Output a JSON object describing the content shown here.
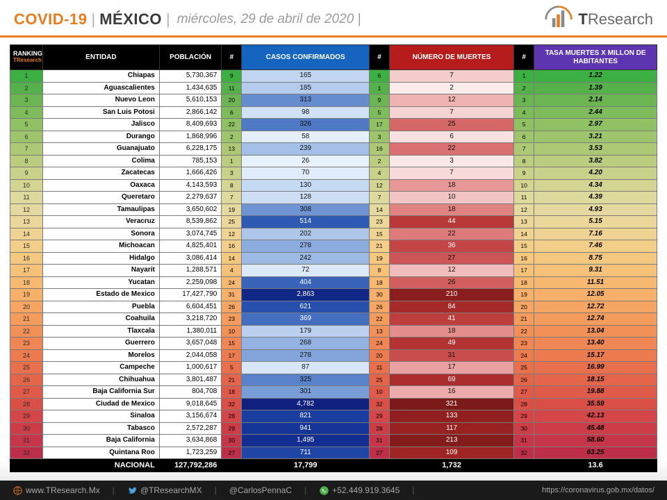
{
  "header": {
    "covid": "COVID-19",
    "country": "MÉXICO",
    "date": "miércoles, 29 de abril de 2020",
    "brand1": "T",
    "brand2": "Research"
  },
  "columns": {
    "rank": "RANKING",
    "rank_sub": "TResearch",
    "entity": "ENTIDAD",
    "population": "POBLACIÓN",
    "hash": "#",
    "cases": "CASOS CONFIRMADOS",
    "deaths": "NÚMERO DE MUERTES",
    "rate": "TASA MUERTES X MILLON DE HABITANTES"
  },
  "palette": {
    "rate_scale": [
      "#3cb043",
      "#55b24a",
      "#6bb652",
      "#7ebb5a",
      "#8fc063",
      "#9ec46c",
      "#aec976",
      "#bdcd80",
      "#cad18a",
      "#d5d593",
      "#ded99c",
      "#e6d99f",
      "#ecd79b",
      "#f0d392",
      "#f3ce89",
      "#f5c880",
      "#f6c178",
      "#f7b970",
      "#f7b069",
      "#f6a662",
      "#f49c5c",
      "#f29157",
      "#ef8653",
      "#ec7b4f",
      "#e8704c",
      "#e4654a",
      "#df5a48",
      "#da5047",
      "#d44647",
      "#cd3d47",
      "#c63548",
      "#be2e49"
    ],
    "cases_scale": [
      "#e8f2fc",
      "#e4effb",
      "#e0ecfa",
      "#dcE9f9",
      "#d7e6f8",
      "#d2e2f6",
      "#cddef5",
      "#c7daf3",
      "#c1d5f1",
      "#bbd0ef",
      "#b4cbed",
      "#adc6ea",
      "#a5c0e8",
      "#9dbae5",
      "#95b3e2",
      "#8cacdf",
      "#83a5db",
      "#799dd7",
      "#6f94d3",
      "#658ccf",
      "#5a82ca",
      "#4f79c5",
      "#446fc0",
      "#3964ba",
      "#2f5ab4",
      "#264fae",
      "#1f46a7",
      "#1a3da0",
      "#163598",
      "#132e90",
      "#112788",
      "#102180"
    ],
    "deaths_scale": [
      "#fbecec",
      "#fae7e7",
      "#f9e1e1",
      "#f8dada",
      "#f6d3d3",
      "#f5cccc",
      "#f3c4c4",
      "#f1bbbb",
      "#efb3b3",
      "#edaaaa",
      "#eaa0a0",
      "#e79797",
      "#e48d8d",
      "#e18383",
      "#de7a7a",
      "#da7070",
      "#d66767",
      "#d25e5e",
      "#cd5555",
      "#c94d4d",
      "#c44545",
      "#be3e3e",
      "#b93838",
      "#b33232",
      "#ac2d2d",
      "#a62929",
      "#9f2525",
      "#982222",
      "#911f1f",
      "#8a1d1d",
      "#831b1b",
      "#7c1a1a"
    ]
  },
  "rows": [
    {
      "rank": 1,
      "entity": "Chiapas",
      "pop": "5,730,367",
      "cases_rank": 9,
      "cases": "165",
      "deaths_rank": 6,
      "deaths": "7",
      "rate_rank": 1,
      "rate": "1.22"
    },
    {
      "rank": 2,
      "entity": "Aguascalientes",
      "pop": "1,434,635",
      "cases_rank": 11,
      "cases": "185",
      "deaths_rank": 1,
      "deaths": "2",
      "rate_rank": 2,
      "rate": "1.39"
    },
    {
      "rank": 3,
      "entity": "Nuevo Leon",
      "pop": "5,610,153",
      "cases_rank": 20,
      "cases": "313",
      "deaths_rank": 9,
      "deaths": "12",
      "rate_rank": 3,
      "rate": "2.14"
    },
    {
      "rank": 4,
      "entity": "San Luis Potosi",
      "pop": "2,866,142",
      "cases_rank": 6,
      "cases": "98",
      "deaths_rank": 5,
      "deaths": "7",
      "rate_rank": 4,
      "rate": "2.44"
    },
    {
      "rank": 5,
      "entity": "Jalisco",
      "pop": "8,409,693",
      "cases_rank": 22,
      "cases": "326",
      "deaths_rank": 17,
      "deaths": "25",
      "rate_rank": 5,
      "rate": "2.97"
    },
    {
      "rank": 6,
      "entity": "Durango",
      "pop": "1,868,996",
      "cases_rank": 2,
      "cases": "58",
      "deaths_rank": 3,
      "deaths": "6",
      "rate_rank": 6,
      "rate": "3.21"
    },
    {
      "rank": 7,
      "entity": "Guanajuato",
      "pop": "6,228,175",
      "cases_rank": 13,
      "cases": "239",
      "deaths_rank": 16,
      "deaths": "22",
      "rate_rank": 7,
      "rate": "3.53"
    },
    {
      "rank": 8,
      "entity": "Colima",
      "pop": "785,153",
      "cases_rank": 1,
      "cases": "26",
      "deaths_rank": 2,
      "deaths": "3",
      "rate_rank": 8,
      "rate": "3.82"
    },
    {
      "rank": 9,
      "entity": "Zacatecas",
      "pop": "1,666,426",
      "cases_rank": 3,
      "cases": "70",
      "deaths_rank": 4,
      "deaths": "7",
      "rate_rank": 9,
      "rate": "4.20"
    },
    {
      "rank": 10,
      "entity": "Oaxaca",
      "pop": "4,143,593",
      "cases_rank": 8,
      "cases": "130",
      "deaths_rank": 12,
      "deaths": "18",
      "rate_rank": 10,
      "rate": "4.34"
    },
    {
      "rank": 11,
      "entity": "Queretaro",
      "pop": "2,279,637",
      "cases_rank": 7,
      "cases": "128",
      "deaths_rank": 7,
      "deaths": "10",
      "rate_rank": 11,
      "rate": "4.39"
    },
    {
      "rank": 12,
      "entity": "Tamaulipas",
      "pop": "3,650,602",
      "cases_rank": 19,
      "cases": "308",
      "deaths_rank": 14,
      "deaths": "18",
      "rate_rank": 12,
      "rate": "4.93"
    },
    {
      "rank": 13,
      "entity": "Veracruz",
      "pop": "8,539,862",
      "cases_rank": 25,
      "cases": "514",
      "deaths_rank": 23,
      "deaths": "44",
      "rate_rank": 13,
      "rate": "5.15"
    },
    {
      "rank": 14,
      "entity": "Sonora",
      "pop": "3,074,745",
      "cases_rank": 12,
      "cases": "202",
      "deaths_rank": 15,
      "deaths": "22",
      "rate_rank": 14,
      "rate": "7.16"
    },
    {
      "rank": 15,
      "entity": "Michoacan",
      "pop": "4,825,401",
      "cases_rank": 16,
      "cases": "278",
      "deaths_rank": 21,
      "deaths": "36",
      "rate_rank": 15,
      "rate": "7.46"
    },
    {
      "rank": 16,
      "entity": "Hidalgo",
      "pop": "3,086,414",
      "cases_rank": 14,
      "cases": "242",
      "deaths_rank": 19,
      "deaths": "27",
      "rate_rank": 16,
      "rate": "8.75"
    },
    {
      "rank": 17,
      "entity": "Nayarit",
      "pop": "1,288,571",
      "cases_rank": 4,
      "cases": "72",
      "deaths_rank": 8,
      "deaths": "12",
      "rate_rank": 17,
      "rate": "9.31"
    },
    {
      "rank": 18,
      "entity": "Yucatan",
      "pop": "2,259,098",
      "cases_rank": 24,
      "cases": "404",
      "deaths_rank": 18,
      "deaths": "26",
      "rate_rank": 18,
      "rate": "11.51"
    },
    {
      "rank": 19,
      "entity": "Estado de Mexico",
      "pop": "17,427,790",
      "cases_rank": 31,
      "cases": "2,863",
      "deaths_rank": 30,
      "deaths": "210",
      "rate_rank": 19,
      "rate": "12.05"
    },
    {
      "rank": 20,
      "entity": "Puebla",
      "pop": "6,604,451",
      "cases_rank": 26,
      "cases": "621",
      "deaths_rank": 26,
      "deaths": "84",
      "rate_rank": 20,
      "rate": "12.72"
    },
    {
      "rank": 21,
      "entity": "Coahuila",
      "pop": "3,218,720",
      "cases_rank": 23,
      "cases": "369",
      "deaths_rank": 22,
      "deaths": "41",
      "rate_rank": 21,
      "rate": "12.74"
    },
    {
      "rank": 22,
      "entity": "Tlaxcala",
      "pop": "1,380,011",
      "cases_rank": 10,
      "cases": "179",
      "deaths_rank": 13,
      "deaths": "18",
      "rate_rank": 22,
      "rate": "13.04"
    },
    {
      "rank": 23,
      "entity": "Guerrero",
      "pop": "3,657,048",
      "cases_rank": 15,
      "cases": "268",
      "deaths_rank": 24,
      "deaths": "49",
      "rate_rank": 23,
      "rate": "13.40"
    },
    {
      "rank": 24,
      "entity": "Morelos",
      "pop": "2,044,058",
      "cases_rank": 17,
      "cases": "278",
      "deaths_rank": 20,
      "deaths": "31",
      "rate_rank": 24,
      "rate": "15.17"
    },
    {
      "rank": 25,
      "entity": "Campeche",
      "pop": "1,000,617",
      "cases_rank": 5,
      "cases": "87",
      "deaths_rank": 11,
      "deaths": "17",
      "rate_rank": 25,
      "rate": "16.99"
    },
    {
      "rank": 26,
      "entity": "Chihuahua",
      "pop": "3,801,487",
      "cases_rank": 21,
      "cases": "325",
      "deaths_rank": 25,
      "deaths": "69",
      "rate_rank": 26,
      "rate": "18.15"
    },
    {
      "rank": 27,
      "entity": "Baja California Sur",
      "pop": "804,708",
      "cases_rank": 18,
      "cases": "301",
      "deaths_rank": 10,
      "deaths": "16",
      "rate_rank": 27,
      "rate": "19.88"
    },
    {
      "rank": 28,
      "entity": "Ciudad de Mexico",
      "pop": "9,018,645",
      "cases_rank": 32,
      "cases": "4,782",
      "deaths_rank": 32,
      "deaths": "321",
      "rate_rank": 28,
      "rate": "35.59"
    },
    {
      "rank": 29,
      "entity": "Sinaloa",
      "pop": "3,156,674",
      "cases_rank": 28,
      "cases": "821",
      "deaths_rank": 29,
      "deaths": "133",
      "rate_rank": 29,
      "rate": "42.13"
    },
    {
      "rank": 30,
      "entity": "Tabasco",
      "pop": "2,572,287",
      "cases_rank": 29,
      "cases": "941",
      "deaths_rank": 28,
      "deaths": "117",
      "rate_rank": 30,
      "rate": "45.48"
    },
    {
      "rank": 31,
      "entity": "Baja California",
      "pop": "3,634,868",
      "cases_rank": 30,
      "cases": "1,495",
      "deaths_rank": 31,
      "deaths": "213",
      "rate_rank": 31,
      "rate": "58.60"
    },
    {
      "rank": 32,
      "entity": "Quintana Roo",
      "pop": "1,723,259",
      "cases_rank": 27,
      "cases": "711",
      "deaths_rank": 27,
      "deaths": "109",
      "rate_rank": 32,
      "rate": "63.25"
    }
  ],
  "totals": {
    "label": "NACIONAL",
    "pop": "127,792,286",
    "cases": "17,799",
    "deaths": "1,732",
    "rate": "13.6"
  },
  "footer": {
    "web": "www.TResearch.Mx",
    "tw1": "@TResearchMX",
    "tw2": "@CarlosPennaC",
    "phone": "+52.449.919.3645",
    "url": "https://coronavirus.gob.mx/datos/"
  }
}
